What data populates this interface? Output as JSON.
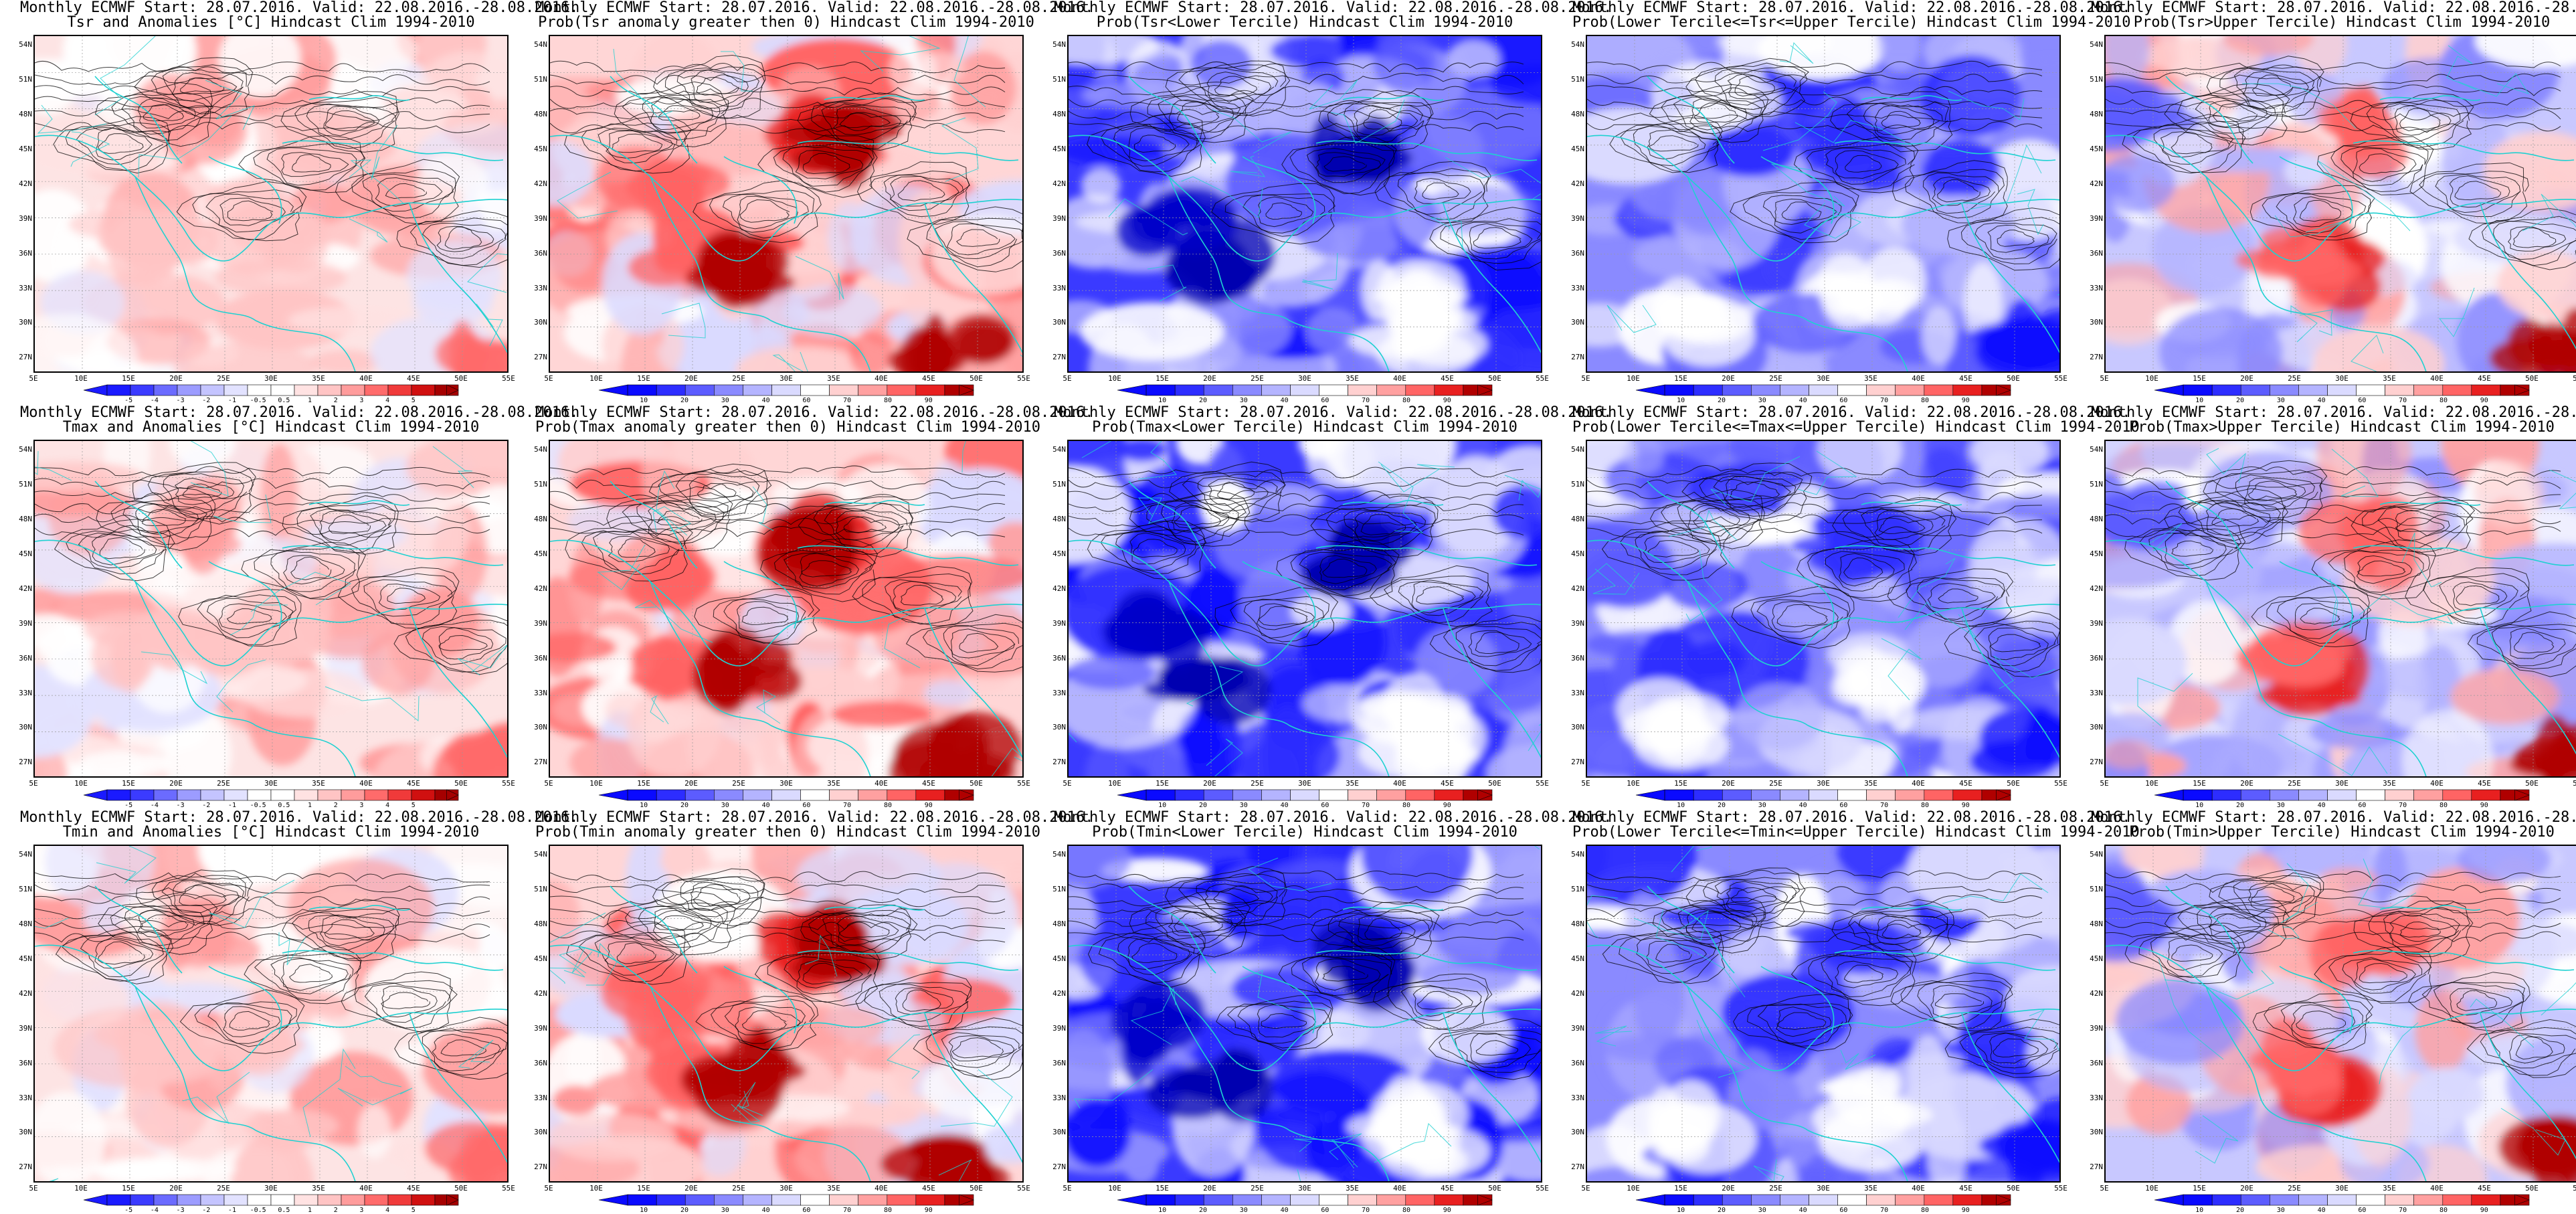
{
  "header_line": "Monthly ECMWF Start: 28.07.2016. Valid: 22.08.2016.-28.08.2016.",
  "lat_labels": [
    "54N",
    "51N",
    "48N",
    "45N",
    "42N",
    "39N",
    "36N",
    "33N",
    "30N",
    "27N"
  ],
  "lon_labels": [
    "5E",
    "10E",
    "15E",
    "20E",
    "25E",
    "30E",
    "35E",
    "40E",
    "45E",
    "50E",
    "55E"
  ],
  "colors": {
    "anomaly": [
      "#1a1aff",
      "#3b3bff",
      "#6b6bff",
      "#9c9cff",
      "#c4c4ff",
      "#e2e2ff",
      "#ffffff",
      "#ffffff",
      "#ffe2e2",
      "#ffc4c4",
      "#ff9c9c",
      "#ff6b6b",
      "#f03a3a",
      "#d01010",
      "#a50000"
    ],
    "prob": [
      "#0a0aff",
      "#2d2dff",
      "#5c5cff",
      "#8a8aff",
      "#b4b4ff",
      "#dadaff",
      "#ffffff",
      "#ffd0d0",
      "#ffa0a0",
      "#ff6464",
      "#e82020",
      "#b00000"
    ],
    "coast": "#1fd1d1",
    "contour": "#000000"
  },
  "rows": [
    {
      "id": "tsr",
      "panels": [
        {
          "subtitle": "Tsr and Anomalies [°C] Hindcast Clim 1994-2010",
          "kind": "anomaly",
          "cbar_labels": [
            "-5",
            "-4",
            "-3",
            "-2",
            "-1",
            "-0.5",
            "0.5",
            "1",
            "2",
            "3",
            "4",
            "5"
          ]
        },
        {
          "subtitle": "Prob(Tsr anomaly greater then 0) Hindcast Clim 1994-2010",
          "kind": "prob-above",
          "cbar_labels": [
            "10",
            "20",
            "30",
            "40",
            "60",
            "70",
            "80",
            "90"
          ]
        },
        {
          "subtitle": "Prob(Tsr<Lower Tercile) Hindcast Clim 1994-2010",
          "kind": "prob-below",
          "cbar_labels": [
            "10",
            "20",
            "30",
            "40",
            "60",
            "70",
            "80",
            "90"
          ]
        },
        {
          "subtitle": "Prob(Lower Tercile<=Tsr<=Upper Tercile) Hindcast Clim 1994-2010",
          "kind": "prob-middle",
          "cbar_labels": [
            "10",
            "20",
            "30",
            "40",
            "60",
            "70",
            "80",
            "90"
          ]
        },
        {
          "subtitle": "Prob(Tsr>Upper Tercile) Hindcast Clim 1994-2010",
          "kind": "prob-upper",
          "cbar_labels": [
            "10",
            "20",
            "30",
            "40",
            "60",
            "70",
            "80",
            "90"
          ]
        }
      ]
    },
    {
      "id": "tmax",
      "panels": [
        {
          "subtitle": "Tmax and Anomalies [°C] Hindcast Clim 1994-2010",
          "kind": "anomaly",
          "cbar_labels": [
            "-5",
            "-4",
            "-3",
            "-2",
            "-1",
            "-0.5",
            "0.5",
            "1",
            "2",
            "3",
            "4",
            "5"
          ]
        },
        {
          "subtitle": "Prob(Tmax anomaly greater then 0) Hindcast Clim 1994-2010",
          "kind": "prob-above",
          "cbar_labels": [
            "10",
            "20",
            "30",
            "40",
            "60",
            "70",
            "80",
            "90"
          ]
        },
        {
          "subtitle": "Prob(Tmax<Lower Tercile) Hindcast Clim 1994-2010",
          "kind": "prob-below",
          "cbar_labels": [
            "10",
            "20",
            "30",
            "40",
            "60",
            "70",
            "80",
            "90"
          ]
        },
        {
          "subtitle": "Prob(Lower Tercile<=Tmax<=Upper Tercile) Hindcast Clim 1994-2010",
          "kind": "prob-middle",
          "cbar_labels": [
            "10",
            "20",
            "30",
            "40",
            "60",
            "70",
            "80",
            "90"
          ]
        },
        {
          "subtitle": "Prob(Tmax>Upper Tercile) Hindcast Clim 1994-2010",
          "kind": "prob-upper",
          "cbar_labels": [
            "10",
            "20",
            "30",
            "40",
            "60",
            "70",
            "80",
            "90"
          ]
        }
      ]
    },
    {
      "id": "tmin",
      "panels": [
        {
          "subtitle": "Tmin and Anomalies [°C] Hindcast Clim 1994-2010",
          "kind": "anomaly",
          "cbar_labels": [
            "-5",
            "-4",
            "-3",
            "-2",
            "-1",
            "-0.5",
            "0.5",
            "1",
            "2",
            "3",
            "4",
            "5"
          ]
        },
        {
          "subtitle": "Prob(Tmin anomaly greater then 0) Hindcast Clim 1994-2010",
          "kind": "prob-above",
          "cbar_labels": [
            "10",
            "20",
            "30",
            "40",
            "60",
            "70",
            "80",
            "90"
          ]
        },
        {
          "subtitle": "Prob(Tmin<Lower Tercile) Hindcast Clim 1994-2010",
          "kind": "prob-below",
          "cbar_labels": [
            "10",
            "20",
            "30",
            "40",
            "60",
            "70",
            "80",
            "90"
          ]
        },
        {
          "subtitle": "Prob(Lower Tercile<=Tmin<=Upper Tercile) Hindcast Clim 1994-2010",
          "kind": "prob-middle",
          "cbar_labels": [
            "10",
            "20",
            "30",
            "40",
            "60",
            "70",
            "80",
            "90"
          ]
        },
        {
          "subtitle": "Prob(Tmin>Upper Tercile) Hindcast Clim 1994-2010",
          "kind": "prob-upper",
          "cbar_labels": [
            "10",
            "20",
            "30",
            "40",
            "60",
            "70",
            "80",
            "90"
          ]
        }
      ]
    }
  ]
}
